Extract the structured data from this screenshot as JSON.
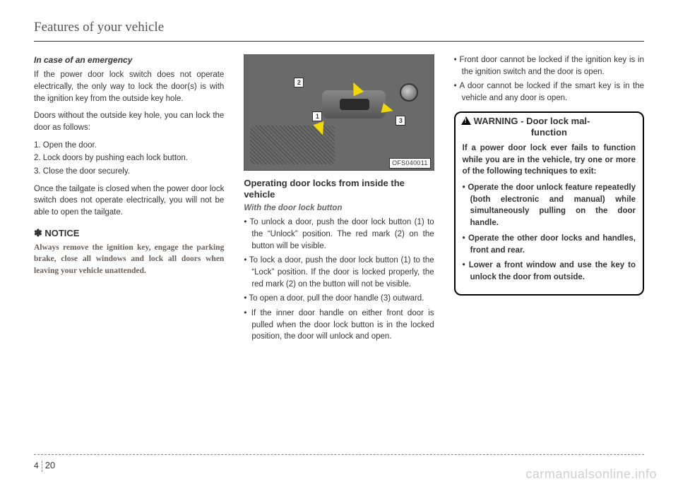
{
  "header": "Features of your vehicle",
  "col1": {
    "subhead": "In case of an emergency",
    "p1": "If the power door lock switch does not operate electrically, the only way to lock the door(s) is with the ignition key from the outside key hole.",
    "p2": "Doors without the outside key hole, you can lock the door as follows:",
    "steps": [
      "1. Open the door.",
      "2. Lock doors by pushing each lock button.",
      "3. Close the door securely."
    ],
    "p3": "Once the tailgate is closed when the power door lock switch does not operate electrically, you will not be able to open the tailgate.",
    "notice_label": "NOTICE",
    "notice_sym": "✽",
    "notice_text": "Always remove the ignition key, engage the parking brake, close all windows and lock all doors when leaving your vehicle unattended."
  },
  "col2": {
    "fig_code": "OFS040011",
    "callouts": {
      "c1": "1",
      "c2": "2",
      "c3": "3"
    },
    "section_head": "Operating door locks from inside the vehicle",
    "sub": "With the door lock button",
    "bullets": [
      "To unlock a door, push the door lock button (1) to the “Unlock” position. The red mark (2) on the button will be visible.",
      "To lock a door, push the door lock button (1) to the “Lock” position. If the door is locked properly, the red mark (2) on the button will not be visible.",
      "To open a door, pull the door handle (3) outward.",
      "If the inner door handle on either front door is pulled when the door lock button is in the locked position, the door will unlock and open."
    ]
  },
  "col3": {
    "top_bullets": [
      "Front door cannot be locked if the ignition key is in the ignition switch and the door is open.",
      "A door cannot be locked if the smart key is in the vehicle and any door is open."
    ],
    "warn_label": "WARNING",
    "warn_sub1": "- Door lock mal-",
    "warn_sub2": "function",
    "warn_p": "If a power door lock ever fails to function while you are in the vehicle, try one or more of the following techniques to exit:",
    "warn_items": [
      "Operate the door unlock feature repeatedly (both electronic and manual) while simultaneously pulling on the door handle.",
      "Operate the other door locks and handles, front and rear.",
      "Lower a front window and use the key to unlock the door from outside."
    ]
  },
  "footer": {
    "chapter": "4",
    "page": "20"
  },
  "watermark": "carmanualsonline.info"
}
